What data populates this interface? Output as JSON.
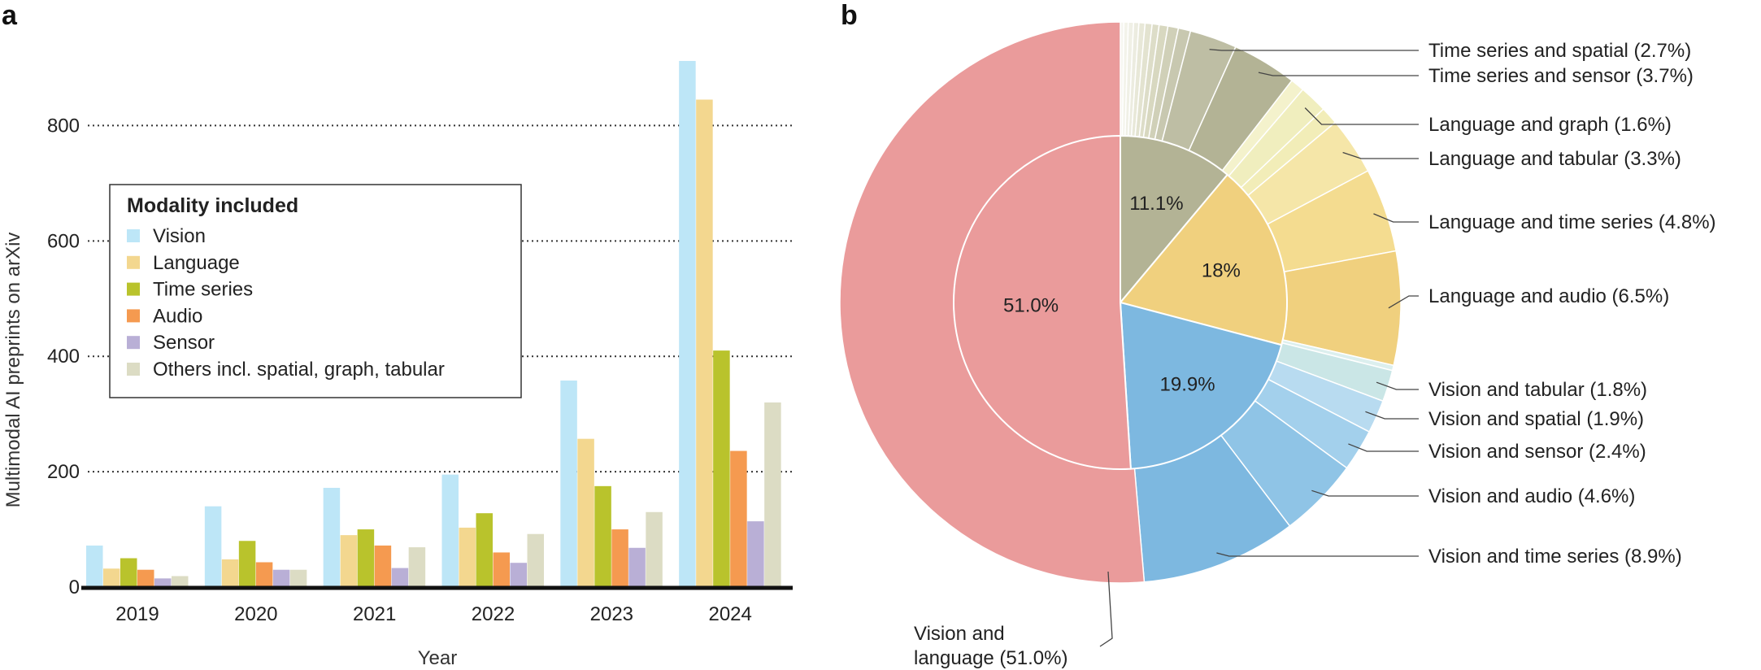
{
  "colors": {
    "Vision": "#bde6f7",
    "Language": "#f3d78f",
    "Time series": "#b9c32c",
    "Audio": "#f59a50",
    "Sensor": "#b9afd6",
    "Others": "#dcdcc4",
    "grid": "#333333",
    "axis": "#111111"
  },
  "chart_data": [
    {
      "panel": "a",
      "type": "bar",
      "title": "",
      "xlabel": "Year",
      "ylabel": "Multimodal AI preprints on arXiv",
      "ylim": [
        0,
        950
      ],
      "yticks": [
        0,
        200,
        400,
        600,
        800
      ],
      "grid": "horizontal dotted at 200, 400, 600, 800",
      "categories": [
        "2019",
        "2020",
        "2021",
        "2022",
        "2023",
        "2024"
      ],
      "legend_title": "Modality included",
      "legend_position": "upper-left",
      "series": [
        {
          "name": "Vision",
          "color_key": "Vision",
          "values": [
            72,
            140,
            172,
            195,
            358,
            912
          ]
        },
        {
          "name": "Language",
          "color_key": "Language",
          "values": [
            32,
            48,
            90,
            103,
            257,
            845
          ]
        },
        {
          "name": "Time series",
          "color_key": "Time series",
          "values": [
            50,
            80,
            100,
            128,
            175,
            410
          ]
        },
        {
          "name": "Audio",
          "color_key": "Audio",
          "values": [
            30,
            43,
            72,
            60,
            100,
            236
          ]
        },
        {
          "name": "Sensor",
          "color_key": "Sensor",
          "values": [
            15,
            30,
            33,
            42,
            68,
            114
          ]
        },
        {
          "name": "Others incl. spatial, graph, tabular",
          "color_key": "Others",
          "values": [
            19,
            30,
            69,
            92,
            130,
            320
          ]
        }
      ]
    },
    {
      "panel": "b",
      "type": "pie",
      "inner": [
        {
          "key": "vl",
          "label": "51.0%",
          "value": 51.0,
          "color": "#ea9b9b"
        },
        {
          "key": "vision",
          "label": "19.9%",
          "value": 19.9,
          "color": "#7db8e0"
        },
        {
          "key": "language",
          "label": "18%",
          "value": 18.0,
          "color": "#f0d07e"
        },
        {
          "key": "other",
          "label": "11.1%",
          "value": 11.1,
          "color": "#b3b395"
        }
      ],
      "outer": [
        {
          "label": "Vision and language (51.0%)",
          "value": 51.0,
          "color": "#ea9b9b",
          "labeled": true
        },
        {
          "label": "Vision and time series (8.9%)",
          "value": 8.9,
          "color": "#7db8e0",
          "labeled": true
        },
        {
          "label": "Vision and audio (4.6%)",
          "value": 4.6,
          "color": "#8fc4e6",
          "labeled": true
        },
        {
          "label": "Vision and sensor (2.4%)",
          "value": 2.4,
          "color": "#a3d0ec",
          "labeled": true
        },
        {
          "label": "Vision and spatial (1.9%)",
          "value": 1.9,
          "color": "#b8dbf0",
          "labeled": true
        },
        {
          "label": "Vision and tabular (1.8%)",
          "value": 1.8,
          "color": "#cae6e6",
          "labeled": true
        },
        {
          "label": "",
          "value": 0.3,
          "color": "#dcefee",
          "labeled": false
        },
        {
          "label": "Language and audio (6.5%)",
          "value": 6.5,
          "color": "#f0d07e",
          "labeled": true
        },
        {
          "label": "Language and time series (4.8%)",
          "value": 4.8,
          "color": "#f4dc90",
          "labeled": true
        },
        {
          "label": "Language and tabular (3.3%)",
          "value": 3.3,
          "color": "#f5e6a8",
          "labeled": true
        },
        {
          "label": "",
          "value": 1.0,
          "color": "#f2edb8",
          "labeled": false
        },
        {
          "label": "Language and graph (1.6%)",
          "value": 1.6,
          "color": "#f0eebe",
          "labeled": true
        },
        {
          "label": "",
          "value": 0.8,
          "color": "#f4f2cc",
          "labeled": false
        },
        {
          "label": "Time series and sensor (3.7%)",
          "value": 3.7,
          "color": "#b3b395",
          "labeled": true
        },
        {
          "label": "Time series and spatial (2.7%)",
          "value": 2.7,
          "color": "#bebea4",
          "labeled": true
        },
        {
          "label": "",
          "value": 0.7,
          "color": "#c8c8b0",
          "labeled": false
        },
        {
          "label": "",
          "value": 0.6,
          "color": "#d0d0b8",
          "labeled": false
        },
        {
          "label": "",
          "value": 0.5,
          "color": "#d8d8c0",
          "labeled": false
        },
        {
          "label": "",
          "value": 0.4,
          "color": "#ddddc8",
          "labeled": false
        },
        {
          "label": "",
          "value": 0.4,
          "color": "#e3e3d0",
          "labeled": false
        },
        {
          "label": "",
          "value": 0.35,
          "color": "#e8e8d8",
          "labeled": false
        },
        {
          "label": "",
          "value": 0.3,
          "color": "#ecece0",
          "labeled": false
        },
        {
          "label": "",
          "value": 0.3,
          "color": "#f0f0e6",
          "labeled": false
        },
        {
          "label": "",
          "value": 0.25,
          "color": "#f3f3ea",
          "labeled": false
        },
        {
          "label": "",
          "value": 0.2,
          "color": "#f6f6f0",
          "labeled": false
        }
      ],
      "callout_vl": [
        "Vision and",
        "language (51.0%)"
      ]
    }
  ],
  "panels": {
    "a": "a",
    "b": "b"
  }
}
